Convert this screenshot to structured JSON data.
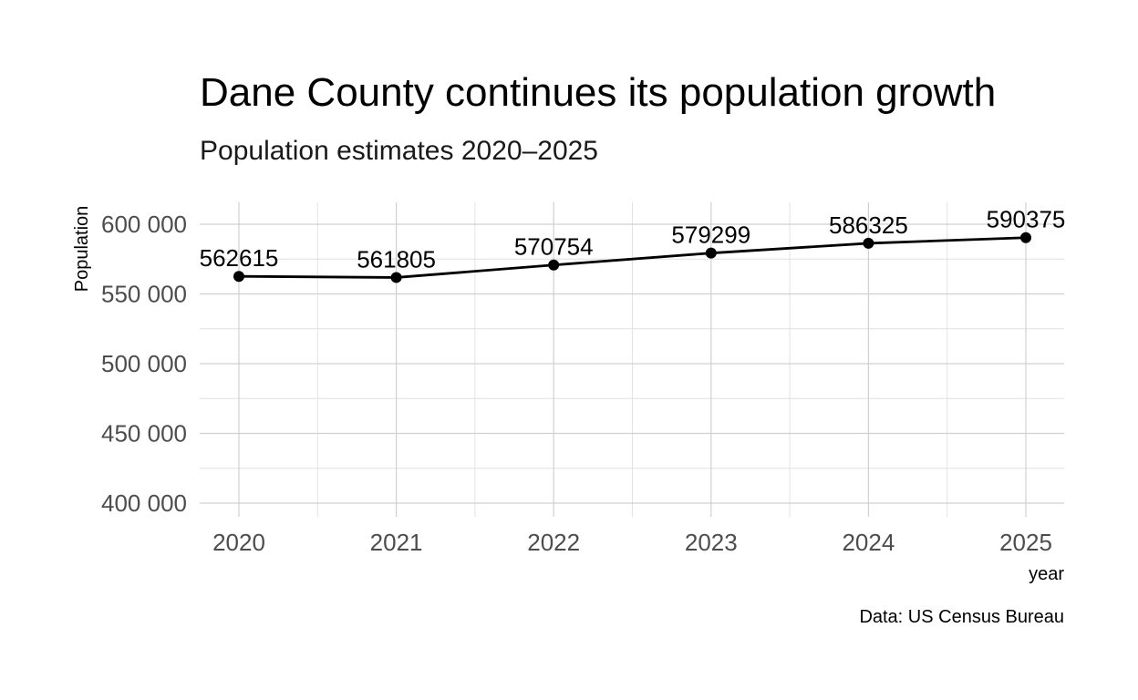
{
  "chart_data": {
    "type": "line",
    "title": "Dane County continues its population growth",
    "subtitle": "Population estimates 2020–2025",
    "caption": "Data: US Census Bureau",
    "xlabel": "year",
    "ylabel": "Population",
    "x": [
      2020,
      2021,
      2022,
      2023,
      2024,
      2025
    ],
    "values": [
      562615,
      561805,
      570754,
      579299,
      586325,
      590375
    ],
    "data_labels": [
      "562615",
      "561805",
      "570754",
      "579299",
      "586325",
      "590375"
    ],
    "xlim": [
      2019.75,
      2025.25
    ],
    "ylim": [
      400000,
      600000
    ],
    "yticks": [
      400000,
      450000,
      500000,
      550000,
      600000
    ],
    "ytick_labels": [
      "400 000",
      "450 000",
      "500 000",
      "550 000",
      "600 000"
    ],
    "xtick_labels": [
      "2020",
      "2021",
      "2022",
      "2023",
      "2024",
      "2025"
    ],
    "grid": true,
    "legend": "none",
    "line_color": "#000000",
    "grid_color": "#d0d0d0"
  }
}
